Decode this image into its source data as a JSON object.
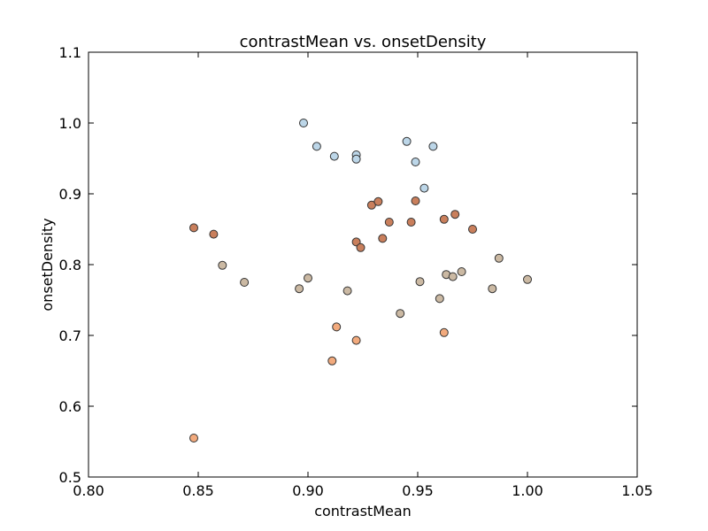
{
  "chart_data": {
    "type": "scatter",
    "title": "contrastMean vs. onsetDensity",
    "xlabel": "contrastMean",
    "ylabel": "onsetDensity",
    "xlim": [
      0.8,
      1.05
    ],
    "ylim": [
      0.5,
      1.1
    ],
    "xticks": [
      "0.80",
      "0.85",
      "0.90",
      "0.95",
      "1.00",
      "1.05"
    ],
    "yticks": [
      "0.5",
      "0.6",
      "0.7",
      "0.8",
      "0.9",
      "1.0",
      "1.1"
    ],
    "grid": false,
    "series": [
      {
        "color": "#bcd6e8",
        "points": [
          [
            0.898,
            1.0
          ],
          [
            0.904,
            0.967
          ],
          [
            0.912,
            0.953
          ],
          [
            0.922,
            0.955
          ],
          [
            0.922,
            0.949
          ],
          [
            0.945,
            0.974
          ],
          [
            0.957,
            0.967
          ],
          [
            0.949,
            0.945
          ],
          [
            0.953,
            0.908
          ]
        ]
      },
      {
        "color": "#c97f5c",
        "points": [
          [
            0.848,
            0.852
          ],
          [
            0.857,
            0.843
          ],
          [
            0.922,
            0.832
          ],
          [
            0.924,
            0.824
          ],
          [
            0.934,
            0.837
          ],
          [
            0.929,
            0.884
          ],
          [
            0.932,
            0.889
          ],
          [
            0.937,
            0.86
          ],
          [
            0.947,
            0.86
          ],
          [
            0.949,
            0.89
          ],
          [
            0.962,
            0.864
          ],
          [
            0.967,
            0.871
          ],
          [
            0.975,
            0.85
          ]
        ]
      },
      {
        "color": "#cbb9a3",
        "points": [
          [
            0.861,
            0.799
          ],
          [
            0.871,
            0.775
          ],
          [
            0.896,
            0.766
          ],
          [
            0.9,
            0.781
          ],
          [
            0.918,
            0.763
          ],
          [
            0.942,
            0.731
          ],
          [
            0.951,
            0.776
          ],
          [
            0.96,
            0.752
          ],
          [
            0.963,
            0.786
          ],
          [
            0.966,
            0.783
          ],
          [
            0.97,
            0.79
          ],
          [
            0.984,
            0.766
          ],
          [
            0.987,
            0.809
          ],
          [
            1.0,
            0.779
          ]
        ]
      },
      {
        "color": "#f2aa7d",
        "points": [
          [
            0.848,
            0.555
          ],
          [
            0.911,
            0.664
          ],
          [
            0.913,
            0.712
          ],
          [
            0.922,
            0.693
          ],
          [
            0.962,
            0.704
          ]
        ]
      }
    ]
  }
}
